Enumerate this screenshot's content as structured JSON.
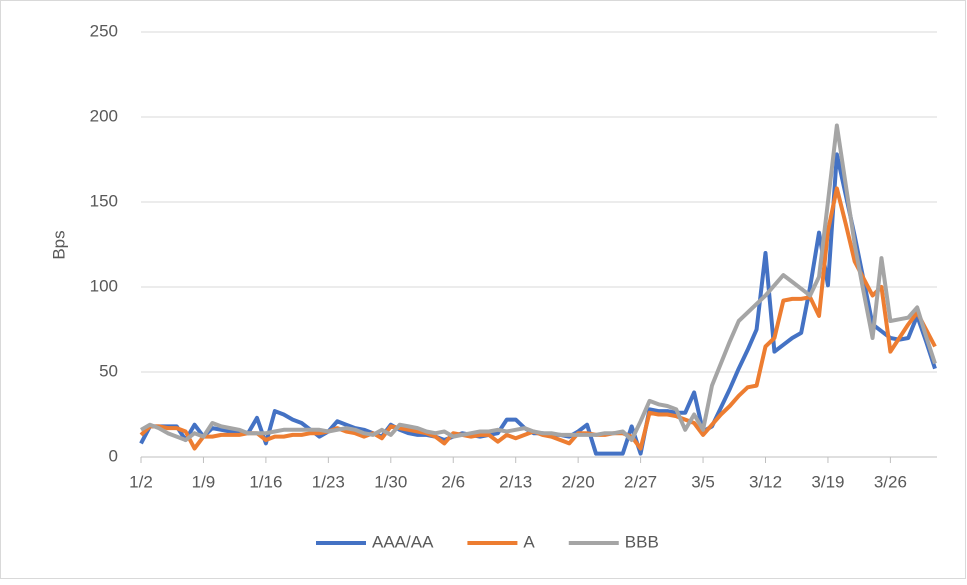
{
  "chart_data": {
    "type": "line",
    "y_label": "Bps",
    "categories": [
      "1/2",
      null,
      null,
      null,
      null,
      null,
      null,
      "1/9",
      null,
      null,
      null,
      null,
      null,
      null,
      "1/16",
      null,
      null,
      null,
      null,
      null,
      null,
      "1/23",
      null,
      null,
      null,
      null,
      null,
      null,
      "1/30",
      null,
      null,
      null,
      null,
      null,
      null,
      "2/6",
      null,
      null,
      null,
      null,
      null,
      null,
      "2/13",
      null,
      null,
      null,
      null,
      null,
      null,
      "2/20",
      null,
      null,
      null,
      null,
      null,
      null,
      "2/27",
      null,
      null,
      null,
      null,
      null,
      null,
      "3/5",
      null,
      null,
      null,
      null,
      null,
      null,
      "3/12",
      null,
      null,
      null,
      null,
      null,
      null,
      "3/19",
      null,
      null,
      null,
      null,
      null,
      null,
      "3/26",
      null,
      null,
      null,
      null,
      null
    ],
    "series": [
      {
        "name": "AAA/AA",
        "color": "#4472c4",
        "values": [
          8,
          18,
          18,
          18,
          18,
          10,
          19,
          12,
          17,
          16,
          15,
          15,
          14,
          23,
          8,
          27,
          25,
          22,
          20,
          16,
          12,
          15,
          21,
          19,
          17,
          16,
          14,
          12,
          19,
          16,
          14,
          13,
          13,
          12,
          10,
          12,
          14,
          13,
          12,
          13,
          14,
          22,
          22,
          17,
          14,
          14,
          13,
          13,
          12,
          15,
          19,
          2,
          2,
          2,
          2,
          18,
          2,
          28,
          27,
          27,
          26,
          26,
          38,
          15,
          18,
          29,
          40,
          52,
          63,
          75,
          120,
          62,
          66,
          70,
          73,
          100,
          132,
          101,
          178,
          154,
          130,
          104,
          78,
          74,
          70,
          69,
          70,
          83,
          68,
          52
        ]
      },
      {
        "name": "A",
        "color": "#ed7d31",
        "values": [
          13,
          18,
          18,
          17,
          17,
          15,
          5,
          12,
          12,
          13,
          13,
          13,
          14,
          14,
          10,
          12,
          12,
          13,
          13,
          14,
          14,
          15,
          17,
          15,
          14,
          12,
          14,
          11,
          18,
          17,
          16,
          15,
          14,
          12,
          8,
          14,
          13,
          12,
          13,
          13,
          9,
          13,
          11,
          13,
          15,
          13,
          12,
          10,
          8,
          14,
          14,
          13,
          13,
          14,
          14,
          12,
          5,
          26,
          25,
          25,
          24,
          22,
          20,
          13,
          19,
          25,
          30,
          36,
          41,
          42,
          65,
          70,
          92,
          93,
          93,
          94,
          83,
          133,
          158,
          137,
          115,
          105,
          95,
          100,
          62,
          70,
          78,
          85,
          75,
          65
        ]
      },
      {
        "name": "BBB",
        "color": "#a5a5a5",
        "values": [
          16,
          19,
          17,
          14,
          12,
          10,
          14,
          12,
          20,
          18,
          17,
          16,
          14,
          14,
          14,
          15,
          16,
          16,
          16,
          16,
          16,
          15,
          16,
          17,
          16,
          14,
          13,
          16,
          13,
          19,
          18,
          17,
          15,
          14,
          15,
          12,
          13,
          14,
          15,
          15,
          16,
          15,
          16,
          17,
          15,
          14,
          14,
          13,
          13,
          13,
          13,
          13,
          14,
          14,
          15,
          10,
          21,
          33,
          31,
          30,
          28,
          16,
          25,
          16,
          42,
          55,
          68,
          80,
          85,
          90,
          95,
          101,
          107,
          103,
          99,
          95,
          106,
          150,
          195,
          160,
          125,
          97,
          70,
          117,
          80,
          81,
          82,
          88,
          71,
          55
        ]
      }
    ],
    "ylim": [
      0,
      250
    ],
    "yticks": [
      0,
      50,
      100,
      150,
      200,
      250
    ],
    "grid": true,
    "legend": "bottom"
  }
}
